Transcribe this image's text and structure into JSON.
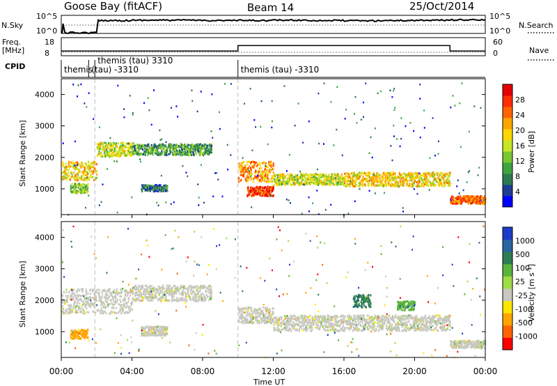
{
  "header": {
    "station": "Goose Bay (fitACF)",
    "beam": "Beam 14",
    "date": "25/Oct/2014"
  },
  "noise_panel": {
    "left_label": "N.Sky",
    "right_label": "N.Search",
    "left_ticks": [
      "10^5",
      "10^0"
    ],
    "right_ticks": [
      "10^5",
      "10^0"
    ]
  },
  "freq_panel": {
    "left_label_line1": "Freq.",
    "left_label_line2": "[MHz]",
    "right_label": "Nave",
    "left_ticks": [
      "18",
      "8"
    ],
    "right_ticks": [
      "60",
      "0"
    ]
  },
  "cpid_panel": {
    "label": "CPID",
    "segments": [
      {
        "start": 0.0,
        "end": 1.55,
        "text": "themis"
      },
      {
        "start": 1.55,
        "end": 1.9,
        "text": "(tau) -3310"
      },
      {
        "start": 1.9,
        "end": 10.0,
        "text": "themis (tau) 3310"
      },
      {
        "start": 10.0,
        "end": 24.0,
        "text": "themis (tau) -3310"
      }
    ]
  },
  "power_panel": {
    "ylabel": "Slant Range [km]",
    "yticks": [
      "4000",
      "3000",
      "2000",
      "1000"
    ],
    "colorbar_label": "Power [dB]",
    "colorbar_ticks": [
      "28",
      "24",
      "20",
      "16",
      "12",
      "8",
      "4"
    ],
    "colors": [
      "#0000ff",
      "#1e3c96",
      "#2d7a50",
      "#3fa33f",
      "#78c832",
      "#c8e628",
      "#ffd700",
      "#ffa500",
      "#ff6400",
      "#ff2d00",
      "#e60000"
    ]
  },
  "velocity_panel": {
    "ylabel": "Slant Range [km]",
    "yticks": [
      "4000",
      "3000",
      "2000",
      "1000"
    ],
    "colorbar_label": "Velocity [m s^-1]",
    "colorbar_ticks": [
      "1000",
      "500",
      "100",
      "25",
      "-25",
      "-100",
      "-500",
      "-1000"
    ],
    "colors": [
      "#1e3cc8",
      "#2864a0",
      "#2d7d50",
      "#5ab43c",
      "#a0dc46",
      "#c8c8c0",
      "#ffe600",
      "#ffa500",
      "#ff6400",
      "#ff0000"
    ]
  },
  "x_axis": {
    "label": "Time UT",
    "ticks": [
      "00:00",
      "04:00",
      "08:00",
      "12:00",
      "16:00",
      "20:00",
      "00:00"
    ]
  },
  "chart_data": [
    {
      "type": "line",
      "title": "N.Sky",
      "x_range": [
        0,
        24
      ],
      "series": [
        {
          "values_log10": [
            0,
            4.4,
            4.5,
            4.5,
            4.4,
            4.4,
            4.5,
            4.4,
            4.3,
            4.4,
            4.5,
            4.6
          ]
        }
      ]
    },
    {
      "type": "line",
      "title": "Freq. [MHz]",
      "x": [
        0,
        10.0,
        10.0,
        22.0,
        22.0,
        24.0
      ],
      "series": [
        {
          "values": [
            10.6,
            10.6,
            13.6,
            13.6,
            10.6,
            10.6
          ]
        }
      ],
      "ylim": [
        8,
        18
      ]
    },
    {
      "type": "heatmap",
      "title": "Power [dB]",
      "ylabel": "Slant Range [km]",
      "xlabel": "Time UT",
      "x_range": [
        0,
        24
      ],
      "ylim": [
        180,
        4500
      ],
      "bands": [
        {
          "t": [
            0.0,
            2.0
          ],
          "r": [
            1300,
            1900
          ],
          "level": 6
        },
        {
          "t": [
            2.0,
            4.0
          ],
          "r": [
            2050,
            2500
          ],
          "level": 5
        },
        {
          "t": [
            4.0,
            8.5
          ],
          "r": [
            2100,
            2450
          ],
          "level": 3
        },
        {
          "t": [
            0.5,
            1.5
          ],
          "r": [
            900,
            1200
          ],
          "level": 4
        },
        {
          "t": [
            4.5,
            6.0
          ],
          "r": [
            950,
            1150
          ],
          "level": 2
        },
        {
          "t": [
            10.0,
            12.0
          ],
          "r": [
            1250,
            1900
          ],
          "level": 7
        },
        {
          "t": [
            10.5,
            12.0
          ],
          "r": [
            800,
            1100
          ],
          "level": 9
        },
        {
          "t": [
            12.0,
            16.0
          ],
          "r": [
            1150,
            1500
          ],
          "level": 5
        },
        {
          "t": [
            16.0,
            22.0
          ],
          "r": [
            1100,
            1550
          ],
          "level": 6
        },
        {
          "t": [
            22.0,
            24.0
          ],
          "r": [
            550,
            800
          ],
          "level": 8
        }
      ]
    },
    {
      "type": "heatmap",
      "title": "Velocity [m s^-1]",
      "ylabel": "Slant Range [km]",
      "xlabel": "Time UT",
      "x_range": [
        0,
        24
      ],
      "ylim": [
        180,
        4500
      ],
      "bands": [
        {
          "t": [
            0.0,
            4.0
          ],
          "r": [
            1600,
            2400
          ],
          "level": 5
        },
        {
          "t": [
            4.0,
            8.5
          ],
          "r": [
            2000,
            2500
          ],
          "level": 5
        },
        {
          "t": [
            4.5,
            6.0
          ],
          "r": [
            900,
            1200
          ],
          "level": 5
        },
        {
          "t": [
            10.0,
            12.0
          ],
          "r": [
            1300,
            1800
          ],
          "level": 5
        },
        {
          "t": [
            12.0,
            22.0
          ],
          "r": [
            1050,
            1550
          ],
          "level": 5
        },
        {
          "t": [
            22.0,
            24.0
          ],
          "r": [
            500,
            750
          ],
          "level": 5
        },
        {
          "t": [
            0.5,
            1.5
          ],
          "r": [
            800,
            1100
          ],
          "level": 7
        },
        {
          "t": [
            16.5,
            17.5
          ],
          "r": [
            1800,
            2200
          ],
          "level": 2
        },
        {
          "t": [
            19.0,
            20.0
          ],
          "r": [
            1700,
            2000
          ],
          "level": 3
        }
      ]
    }
  ]
}
